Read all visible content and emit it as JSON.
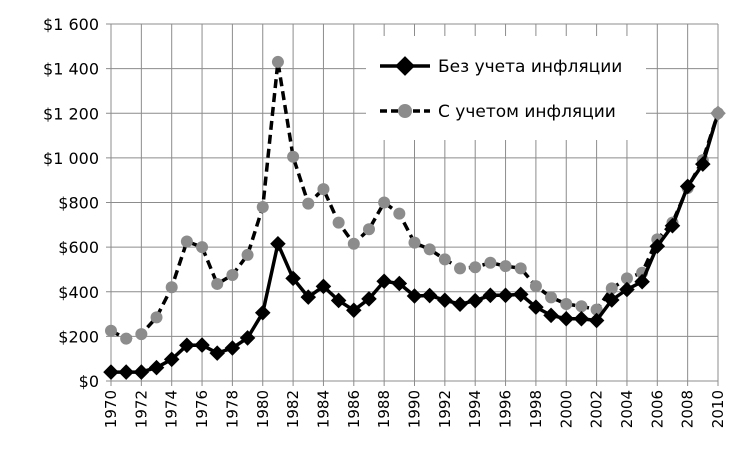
{
  "chart_data": {
    "type": "line",
    "title": "",
    "xlabel": "",
    "ylabel": "",
    "ylim": [
      0,
      1600
    ],
    "y_ticks": [
      0,
      200,
      400,
      600,
      800,
      1000,
      1200,
      1400,
      1600
    ],
    "y_tick_labels": [
      "$0",
      "$200",
      "$400",
      "$600",
      "$800",
      "$1 000",
      "$1 200",
      "$1 400",
      "$1 600"
    ],
    "x": [
      1970,
      1971,
      1972,
      1973,
      1974,
      1975,
      1976,
      1977,
      1978,
      1979,
      1980,
      1981,
      1982,
      1983,
      1984,
      1985,
      1986,
      1987,
      1988,
      1989,
      1990,
      1991,
      1992,
      1993,
      1994,
      1995,
      1996,
      1997,
      1998,
      1999,
      2000,
      2001,
      2002,
      2003,
      2004,
      2005,
      2006,
      2007,
      2008,
      2009,
      2010
    ],
    "x_tick_labels": [
      "1970",
      "1972",
      "1974",
      "1976",
      "1978",
      "1980",
      "1982",
      "1984",
      "1986",
      "1988",
      "1990",
      "1992",
      "1994",
      "1996",
      "1998",
      "2000",
      "2002",
      "2004",
      "2006",
      "2008",
      "2010"
    ],
    "grid": true,
    "legend_position": "top-right",
    "series": [
      {
        "name": "Без учета инфляции",
        "color": "#000000",
        "style": "solid",
        "marker": "diamond",
        "values": [
          40,
          40,
          40,
          60,
          97,
          160,
          161,
          125,
          148,
          193,
          306,
          615,
          460,
          376,
          424,
          361,
          317,
          368,
          447,
          437,
          381,
          383,
          362,
          344,
          360,
          384,
          384,
          388,
          331,
          294,
          279,
          279,
          271,
          363,
          410,
          445,
          604,
          696,
          872,
          972,
          1200
        ]
      },
      {
        "name": "С учетом инфляции",
        "color": "#8c8c8c",
        "style": "dashed",
        "marker": "circle",
        "values": [
          225,
          190,
          210,
          285,
          420,
          625,
          600,
          435,
          475,
          565,
          780,
          1430,
          1005,
          795,
          860,
          710,
          615,
          680,
          800,
          750,
          620,
          590,
          545,
          505,
          510,
          530,
          515,
          505,
          425,
          375,
          345,
          335,
          320,
          415,
          460,
          485,
          635,
          710,
          865,
          990,
          1200
        ]
      }
    ]
  }
}
